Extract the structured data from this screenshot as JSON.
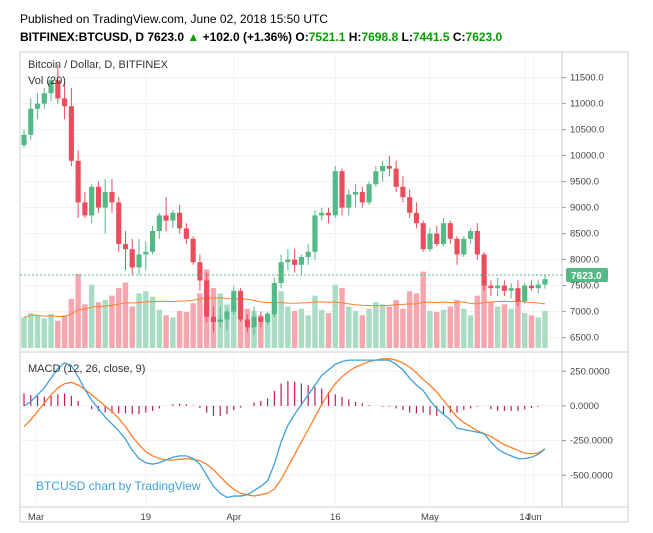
{
  "header": {
    "published": "Published on TradingView.com, June 02, 2018 15:50 UTC",
    "symbol": "BITFINEX:BTCUSD, D",
    "last": "7623.0",
    "change": "+102.0 (+1.36%)",
    "o_label": "O:",
    "o_value": "7521.1",
    "h_label": "H:",
    "h_value": "7698.8",
    "l_label": "L:",
    "l_value": "7441.5",
    "c_label": "C:",
    "c_value": "7623.0"
  },
  "price_pane": {
    "title": "Bitcoin / Dollar, D, BITFINEX",
    "vol_label": "Vol (20)",
    "last_price_label": "7623.0"
  },
  "macd_pane": {
    "title": "MACD (12, 26, close, 9)",
    "watermark": "BTCUSD chart by TradingView"
  },
  "colors": {
    "up": "#53b987",
    "down": "#eb4d5c",
    "vol_up": "#a9dcc3",
    "vol_down": "#f5a6ae",
    "vol_ma": "#ff7f2a",
    "macd_line": "#3ea0d8",
    "signal_line": "#ff7f2a",
    "histogram": "#c2185b"
  },
  "chart_data": [
    {
      "type": "candlestick",
      "title": "Bitcoin / Dollar, D, BITFINEX",
      "x_tick_labels": [
        "Mar",
        "19",
        "Apr",
        "16",
        "May",
        "14",
        "Jun"
      ],
      "y_tick_labels": [
        "6500.0",
        "7000.0",
        "7500.0",
        "8000.0",
        "8500.0",
        "9000.0",
        "9500.0",
        "10000.0",
        "10500.0",
        "11000.0",
        "11500.0"
      ],
      "ylim": [
        6300,
        11800
      ],
      "series": [
        {
          "name": "BTCUSD",
          "ohlc": [
            [
              10200,
              10500,
              10150,
              10400
            ],
            [
              10400,
              11100,
              10300,
              10900
            ],
            [
              10900,
              11200,
              10700,
              11000
            ],
            [
              11000,
              11300,
              10900,
              11200
            ],
            [
              11200,
              11500,
              11050,
              11450
            ],
            [
              11450,
              11750,
              11000,
              11100
            ],
            [
              11100,
              11400,
              10700,
              10950
            ],
            [
              10950,
              11300,
              9800,
              9900
            ],
            [
              9900,
              10100,
              8800,
              9100
            ],
            [
              9100,
              9300,
              8800,
              8850
            ],
            [
              8850,
              9450,
              8700,
              9400
            ],
            [
              9400,
              9500,
              8900,
              9000
            ],
            [
              9000,
              9550,
              8500,
              9300
            ],
            [
              9300,
              9550,
              8900,
              9100
            ],
            [
              9100,
              9200,
              8150,
              8300
            ],
            [
              8300,
              8550,
              7800,
              8200
            ],
            [
              8200,
              8400,
              7700,
              7850
            ],
            [
              7850,
              8400,
              7700,
              8100
            ],
            [
              8100,
              8350,
              7800,
              8150
            ],
            [
              8150,
              8650,
              8100,
              8550
            ],
            [
              8550,
              8900,
              8400,
              8850
            ],
            [
              8850,
              9200,
              8550,
              8750
            ],
            [
              8750,
              8950,
              8600,
              8900
            ],
            [
              8900,
              9050,
              8500,
              8600
            ],
            [
              8600,
              8700,
              8300,
              8400
            ],
            [
              8400,
              8450,
              7900,
              7950
            ],
            [
              7950,
              8100,
              7400,
              7600
            ],
            [
              7600,
              7750,
              6800,
              6900
            ],
            [
              6900,
              7100,
              6600,
              6800
            ],
            [
              6800,
              7100,
              6700,
              6850
            ],
            [
              6850,
              7050,
              6650,
              7000
            ],
            [
              7000,
              7500,
              6950,
              7400
            ],
            [
              7400,
              7450,
              6800,
              6850
            ],
            [
              6850,
              6950,
              6600,
              6700
            ],
            [
              6700,
              7100,
              6550,
              6900
            ],
            [
              6900,
              7000,
              6700,
              6800
            ],
            [
              6800,
              7000,
              6750,
              6950
            ],
            [
              6950,
              7650,
              6900,
              7550
            ],
            [
              7550,
              8100,
              7450,
              7950
            ],
            [
              7950,
              8200,
              7800,
              8000
            ],
            [
              8000,
              8200,
              7750,
              7900
            ],
            [
              7900,
              8100,
              7700,
              8050
            ],
            [
              8050,
              8300,
              7900,
              8150
            ],
            [
              8150,
              8950,
              8000,
              8850
            ],
            [
              8850,
              9000,
              8750,
              8900
            ],
            [
              8900,
              9000,
              8700,
              8850
            ],
            [
              8850,
              9800,
              8800,
              9700
            ],
            [
              9700,
              9750,
              8850,
              9000
            ],
            [
              9000,
              9350,
              8850,
              9250
            ],
            [
              9250,
              9450,
              9000,
              9300
            ],
            [
              9300,
              9400,
              9000,
              9100
            ],
            [
              9100,
              9500,
              9050,
              9450
            ],
            [
              9450,
              9800,
              9400,
              9700
            ],
            [
              9700,
              9900,
              9500,
              9800
            ],
            [
              9800,
              10000,
              9600,
              9750
            ],
            [
              9750,
              9900,
              9300,
              9400
            ],
            [
              9400,
              9600,
              9100,
              9200
            ],
            [
              9200,
              9350,
              8800,
              8900
            ],
            [
              8900,
              9100,
              8600,
              8700
            ],
            [
              8700,
              8750,
              8150,
              8200
            ],
            [
              8200,
              8600,
              8150,
              8500
            ],
            [
              8500,
              8650,
              8250,
              8300
            ],
            [
              8300,
              8800,
              8250,
              8700
            ],
            [
              8700,
              8750,
              8300,
              8400
            ],
            [
              8400,
              8450,
              7900,
              8100
            ],
            [
              8100,
              8450,
              8050,
              8400
            ],
            [
              8400,
              8600,
              8300,
              8550
            ],
            [
              8550,
              8700,
              8000,
              8100
            ],
            [
              8100,
              8150,
              7400,
              7500
            ],
            [
              7500,
              7600,
              7300,
              7450
            ],
            [
              7450,
              7650,
              7300,
              7500
            ],
            [
              7500,
              7600,
              7300,
              7400
            ],
            [
              7400,
              7550,
              7250,
              7450
            ],
            [
              7450,
              7600,
              7100,
              7200
            ],
            [
              7200,
              7550,
              7150,
              7500
            ],
            [
              7500,
              7600,
              7400,
              7450
            ],
            [
              7450,
              7600,
              7350,
              7520
            ],
            [
              7521.1,
              7698.8,
              7441.5,
              7623.0
            ]
          ]
        }
      ]
    },
    {
      "type": "bar",
      "title": "Vol (20)",
      "series": [
        {
          "name": "Vol (20)",
          "values": [
            28,
            32,
            30,
            27,
            31,
            25,
            30,
            45,
            68,
            40,
            58,
            42,
            44,
            48,
            55,
            60,
            38,
            50,
            52,
            47,
            35,
            30,
            28,
            34,
            33,
            41,
            50,
            72,
            55,
            50,
            40,
            42,
            46,
            36,
            34,
            30,
            32,
            44,
            52,
            38,
            34,
            36,
            30,
            48,
            35,
            32,
            58,
            55,
            38,
            34,
            30,
            36,
            42,
            40,
            38,
            44,
            36,
            52,
            50,
            70,
            34,
            33,
            35,
            38,
            44,
            36,
            30,
            48,
            66,
            42,
            38,
            40,
            36,
            44,
            32,
            30,
            28,
            34
          ]
        }
      ]
    },
    {
      "type": "line",
      "title": "MACD (12, 26, close, 9)",
      "y_tick_labels": [
        "250.0000",
        "0.0000",
        "-250.0000",
        "-500.0000"
      ],
      "ylim": [
        -700,
        360
      ],
      "series": [
        {
          "name": "MACD",
          "values": [
            0,
            30,
            80,
            130,
            200,
            270,
            310,
            290,
            210,
            120,
            40,
            -20,
            -80,
            -130,
            -180,
            -240,
            -320,
            -380,
            -410,
            -420,
            -410,
            -390,
            -370,
            -360,
            -360,
            -380,
            -420,
            -500,
            -580,
            -630,
            -660,
            -650,
            -650,
            -640,
            -610,
            -580,
            -540,
            -420,
            -260,
            -140,
            -60,
            10,
            80,
            150,
            220,
            260,
            300,
            320,
            330,
            330,
            330,
            330,
            330,
            330,
            330,
            300,
            260,
            200,
            150,
            110,
            40,
            -20,
            -60,
            -100,
            -160,
            -170,
            -180,
            -190,
            -200,
            -260,
            -310,
            -340,
            -360,
            -380,
            -380,
            -370,
            -350,
            -310
          ]
        },
        {
          "name": "Signal",
          "values": [
            -150,
            -100,
            -40,
            20,
            80,
            130,
            160,
            170,
            150,
            120,
            80,
            40,
            0,
            -40,
            -90,
            -150,
            -220,
            -280,
            -330,
            -360,
            -380,
            -390,
            -390,
            -385,
            -380,
            -385,
            -395,
            -420,
            -460,
            -510,
            -560,
            -600,
            -630,
            -640,
            -650,
            -640,
            -630,
            -600,
            -530,
            -440,
            -350,
            -260,
            -170,
            -80,
            10,
            90,
            160,
            210,
            250,
            280,
            300,
            320,
            330,
            340,
            340,
            330,
            310,
            280,
            240,
            190,
            150,
            100,
            40,
            -20,
            -80,
            -120,
            -150,
            -180,
            -200,
            -220,
            -250,
            -280,
            -300,
            -320,
            -340,
            -345,
            -340,
            -310
          ]
        }
      ]
    }
  ]
}
